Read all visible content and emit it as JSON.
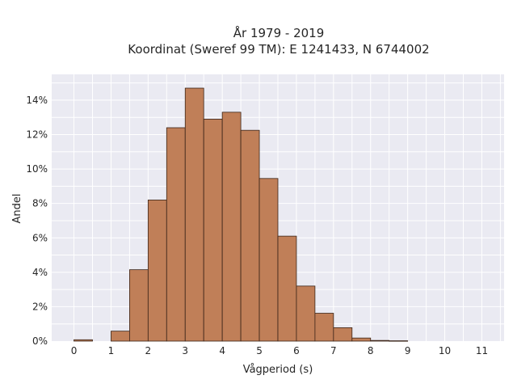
{
  "chart_data": {
    "type": "bar",
    "title_lines": [
      "År 1979 - 2019",
      "Koordinat (Sweref 99 TM): E 1241433, N 6744002"
    ],
    "xlabel": "Vågperiod (s)",
    "ylabel": "Andel",
    "xlim": [
      -0.6,
      11.6
    ],
    "ylim": [
      0,
      0.155
    ],
    "x_ticks": [
      0,
      1,
      2,
      3,
      4,
      5,
      6,
      7,
      8,
      9,
      10,
      11
    ],
    "x_tick_labels": [
      "0",
      "1",
      "2",
      "3",
      "4",
      "5",
      "6",
      "7",
      "8",
      "9",
      "10",
      "11"
    ],
    "y_ticks": [
      0,
      0.02,
      0.04,
      0.06,
      0.08,
      0.1,
      0.12,
      0.14
    ],
    "y_tick_labels": [
      "0%",
      "2%",
      "4%",
      "6%",
      "8%",
      "10%",
      "12%",
      "14%"
    ],
    "bin_width": 0.5,
    "bins": [
      {
        "start": 0.0,
        "value": 0.0008
      },
      {
        "start": 0.5,
        "value": 0.0
      },
      {
        "start": 1.0,
        "value": 0.0058
      },
      {
        "start": 1.5,
        "value": 0.0415
      },
      {
        "start": 2.0,
        "value": 0.082
      },
      {
        "start": 2.5,
        "value": 0.124
      },
      {
        "start": 3.0,
        "value": 0.147
      },
      {
        "start": 3.5,
        "value": 0.129
      },
      {
        "start": 4.0,
        "value": 0.133
      },
      {
        "start": 4.5,
        "value": 0.1225
      },
      {
        "start": 5.0,
        "value": 0.0945
      },
      {
        "start": 5.5,
        "value": 0.061
      },
      {
        "start": 6.0,
        "value": 0.032
      },
      {
        "start": 6.5,
        "value": 0.0162
      },
      {
        "start": 7.0,
        "value": 0.0078
      },
      {
        "start": 7.5,
        "value": 0.0018
      },
      {
        "start": 8.0,
        "value": 0.0004
      },
      {
        "start": 8.5,
        "value": 0.0002
      }
    ],
    "grid": true,
    "colors": {
      "bar": "#c07f58",
      "bar_edge": "#3a2418",
      "plot_bg": "#eaeaf2",
      "grid": "#ffffff"
    }
  }
}
